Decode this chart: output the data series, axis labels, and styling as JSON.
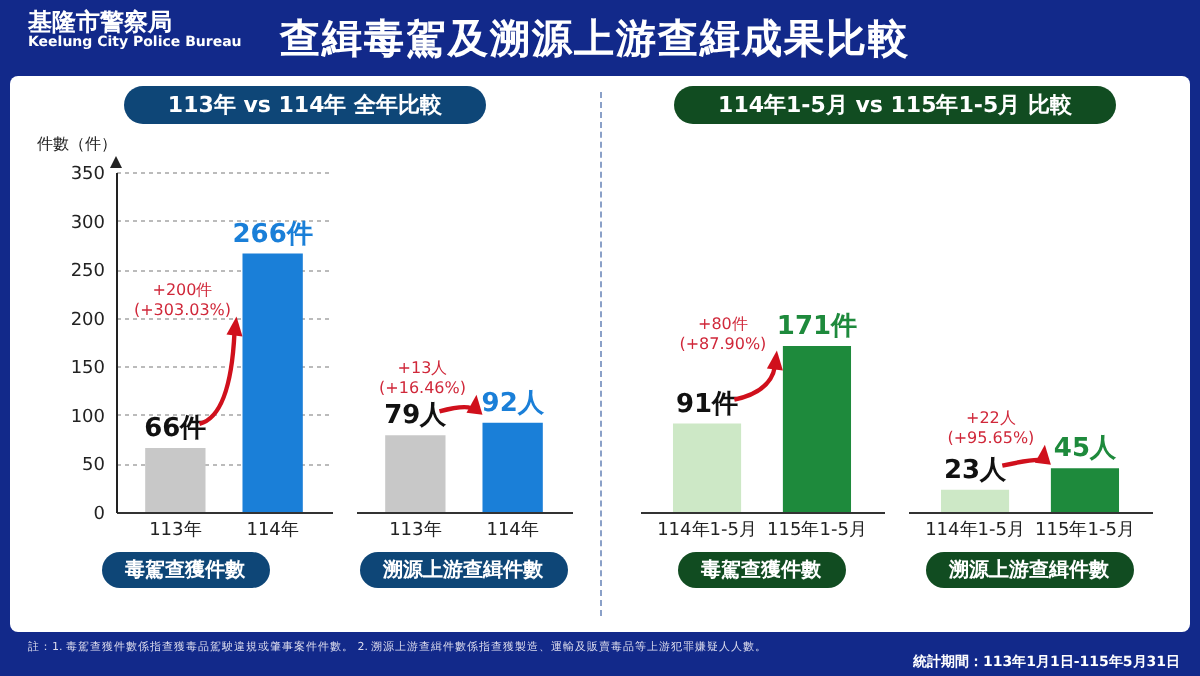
{
  "chart_data": [
    {
      "type": "bar",
      "title": "查緝毒駕及溯源上游查緝成果比較",
      "subtitle": "113年 vs 114年 全年比較",
      "xlabel": "毒駕查獲件數",
      "ylabel": "件數（件）",
      "categories": [
        "113年",
        "114年"
      ],
      "values": [
        66,
        266
      ],
      "colors": [
        "#c8c8c8",
        "#1a7fd8"
      ],
      "value_labels": [
        "66件",
        "266件"
      ],
      "ylim": [
        0,
        350
      ],
      "yticks": [
        0,
        50,
        100,
        150,
        200,
        250,
        300,
        350
      ],
      "grid": "y",
      "annotations": [
        "+200件 (+303.03%)",
        "基隆市警察局",
        "Keelung City Police Bureau"
      ]
    },
    {
      "type": "bar",
      "xlabel": "溯源上游查緝件數",
      "categories": [
        "113年",
        "114年"
      ],
      "values": [
        79,
        92
      ],
      "colors": [
        "#c8c8c8",
        "#1a7fd8"
      ],
      "value_labels": [
        "79人",
        "92人"
      ],
      "ylim": [
        0,
        350
      ],
      "grid": "y",
      "tick_labels": "x",
      "annotations": [
        "+13人 (+16.46%)"
      ]
    },
    {
      "type": "bar",
      "title": "114年1-5月 vs 115年1-5月 比較",
      "xlabel": "毒駕查獲件數",
      "categories": [
        "114年1-5月",
        "115年1-5月"
      ],
      "values": [
        91,
        171
      ],
      "colors": [
        "#cde8c6",
        "#1e8a3c"
      ],
      "value_labels": [
        "91件",
        "171件"
      ],
      "ylim": [
        0,
        350
      ],
      "grid": "y",
      "tick_labels": "x",
      "annotations": [
        "+80件 (+87.90%)"
      ]
    },
    {
      "type": "bar",
      "xlabel": "溯源上游查緝件數",
      "categories": [
        "114年1-5月",
        "115年1-5月"
      ],
      "values": [
        23,
        45
      ],
      "colors": [
        "#cde8c6",
        "#1e8a3c"
      ],
      "value_labels": [
        "23人",
        "45人"
      ],
      "ylim": [
        0,
        350
      ],
      "grid": "y",
      "tick_labels": "x",
      "annotations": [
        "+22人 (+95.65%)",
        "註：1. 毒駕查獲件數係指查獲毒品駕駛違規或肇事案件件數。 2. 溯源上游查緝件數係指查獲製造、運輸及販賣毒品等上游犯罪嫌疑人人數。",
        "統計期間：113年1月1日-115年5月31日"
      ]
    }
  ]
}
